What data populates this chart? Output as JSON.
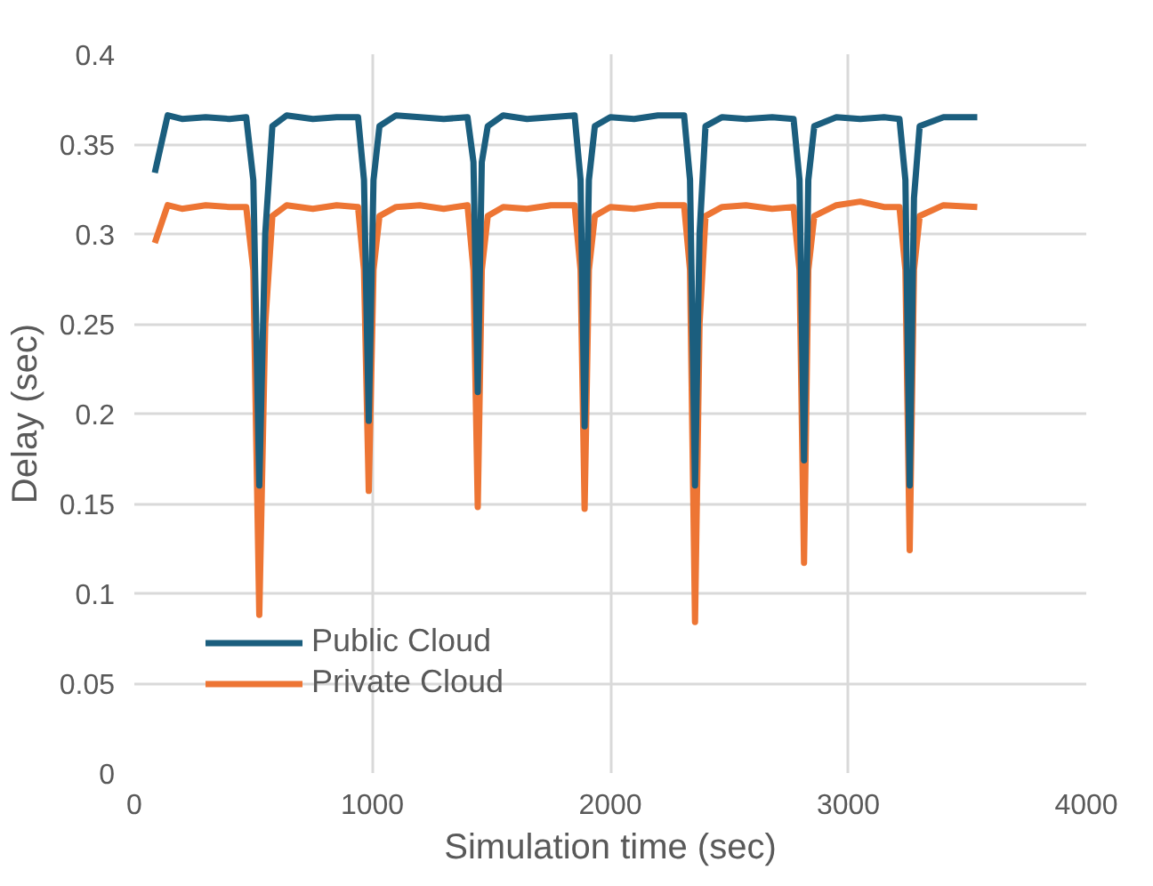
{
  "chart_data": {
    "type": "line",
    "xlabel": "Simulation time (sec)",
    "ylabel": "Delay (sec)",
    "x": [
      86,
      140,
      200,
      300,
      400,
      470,
      500,
      525,
      550,
      580,
      640,
      750,
      850,
      940,
      965,
      985,
      1005,
      1030,
      1100,
      1200,
      1300,
      1400,
      1425,
      1443,
      1460,
      1485,
      1550,
      1650,
      1750,
      1850,
      1875,
      1892,
      1910,
      1935,
      2000,
      2100,
      2200,
      2310,
      2335,
      2356,
      2375,
      2400,
      2470,
      2570,
      2680,
      2770,
      2795,
      2814,
      2832,
      2857,
      2950,
      3050,
      3150,
      3215,
      3240,
      3258,
      3276,
      3300,
      3400,
      3542
    ],
    "series": [
      {
        "name": "Public Cloud",
        "color": "#1b5e7e",
        "values": [
          0.334,
          0.366,
          0.364,
          0.365,
          0.364,
          0.365,
          0.33,
          0.16,
          0.3,
          0.36,
          0.366,
          0.364,
          0.365,
          0.365,
          0.33,
          0.196,
          0.33,
          0.36,
          0.366,
          0.365,
          0.364,
          0.365,
          0.34,
          0.212,
          0.34,
          0.36,
          0.366,
          0.364,
          0.365,
          0.366,
          0.33,
          0.193,
          0.33,
          0.36,
          0.365,
          0.364,
          0.366,
          0.366,
          0.33,
          0.16,
          0.3,
          0.36,
          0.365,
          0.364,
          0.365,
          0.364,
          0.33,
          0.174,
          0.33,
          0.36,
          0.365,
          0.364,
          0.365,
          0.364,
          0.33,
          0.16,
          0.32,
          0.36,
          0.365,
          0.365
        ]
      },
      {
        "name": "Private Cloud",
        "color": "#ed7534",
        "values": [
          0.295,
          0.316,
          0.314,
          0.316,
          0.315,
          0.315,
          0.28,
          0.088,
          0.25,
          0.31,
          0.316,
          0.314,
          0.316,
          0.315,
          0.28,
          0.157,
          0.28,
          0.31,
          0.315,
          0.316,
          0.314,
          0.316,
          0.28,
          0.148,
          0.28,
          0.31,
          0.315,
          0.314,
          0.316,
          0.316,
          0.28,
          0.147,
          0.28,
          0.31,
          0.315,
          0.314,
          0.316,
          0.316,
          0.28,
          0.084,
          0.25,
          0.31,
          0.315,
          0.316,
          0.314,
          0.315,
          0.28,
          0.117,
          0.28,
          0.31,
          0.316,
          0.318,
          0.315,
          0.315,
          0.28,
          0.124,
          0.28,
          0.31,
          0.316,
          0.315
        ]
      }
    ],
    "xlim": [
      0,
      4000
    ],
    "xticks": [
      0,
      1000,
      2000,
      3000,
      4000
    ],
    "ylim": [
      0,
      0.4
    ],
    "yticks": [
      0,
      0.05,
      0.1,
      0.15,
      0.2,
      0.25,
      0.3,
      0.35,
      0.4
    ],
    "grid": true,
    "legend": "bottom left",
    "marker": "none",
    "line_style": "solid"
  }
}
